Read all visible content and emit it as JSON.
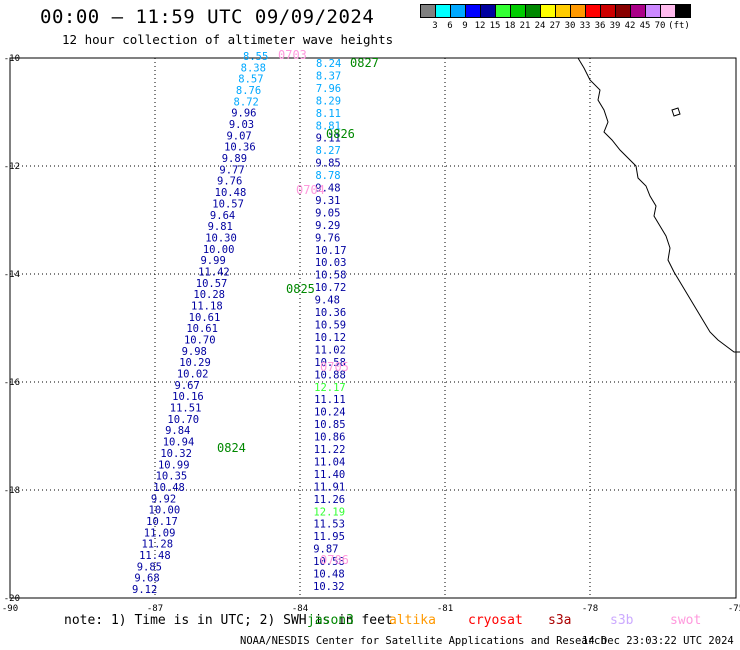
{
  "title": "00:00 — 11:59 UTC 09/09/2024",
  "subtitle": "12 hour collection of altimeter wave heights",
  "scale": {
    "colors": [
      "#808080",
      "#00ffff",
      "#00a8ff",
      "#0000ff",
      "#0000a0",
      "#33ff33",
      "#00cc00",
      "#008800",
      "#ffff00",
      "#ffcc00",
      "#ff9900",
      "#ff0000",
      "#cc0000",
      "#880000",
      "#aa0088",
      "#cc88ff",
      "#ffbbee",
      "#000000"
    ],
    "labels": [
      "3",
      "6",
      "9",
      "12",
      "15",
      "18",
      "21",
      "24",
      "27",
      "30",
      "33",
      "36",
      "39",
      "42",
      "45",
      "70",
      "(ft)"
    ]
  },
  "axes": {
    "lon_labels": [
      "-90",
      "-87",
      "-84",
      "-81",
      "-78",
      "-75"
    ],
    "lat_labels": [
      "-10",
      "-12",
      "-14",
      "-16",
      "-18",
      "-20"
    ]
  },
  "tracks": {
    "left": [
      "8.55",
      "8.38",
      "8.57",
      "8.76",
      "8.72",
      "9.96",
      "9.03",
      "9.07",
      "10.36",
      "9.89",
      "9.77",
      "9.76",
      "10.48",
      "10.57",
      "9.64",
      "9.81",
      "10.30",
      "10.00",
      "9.99",
      "11.42",
      "10.57",
      "10.28",
      "11.18",
      "10.61",
      "10.61",
      "10.70",
      "9.98",
      "10.29",
      "10.02",
      "9.67",
      "10.16",
      "11.51",
      "10.70",
      "9.84",
      "10.94",
      "10.32",
      "10.99",
      "10.35",
      "10.48",
      "9.92",
      "10.00",
      "10.17",
      "11.09",
      "11.28",
      "11.48",
      "9.85",
      "9.68",
      "9.12"
    ],
    "right": [
      "8.24",
      "8.37",
      "7.96",
      "8.29",
      "8.11",
      "8.81",
      "9.11",
      "8.27",
      "9.85",
      "8.78",
      "9.48",
      "9.31",
      "9.05",
      "9.29",
      "9.76",
      "10.17",
      "10.03",
      "10.58",
      "10.72",
      "9.48",
      "10.36",
      "10.59",
      "10.12",
      "11.02",
      "10.58",
      "10.88",
      "12.17",
      "11.11",
      "10.24",
      "10.85",
      "10.86",
      "11.22",
      "11.04",
      "11.40",
      "11.91",
      "11.26",
      "12.19",
      "11.53",
      "11.95",
      "9.87",
      "10.58",
      "10.48",
      "10.32"
    ],
    "ids": [
      "0703",
      "0827",
      "0826",
      "0704",
      "0825",
      "0705",
      "0824",
      "0706"
    ]
  },
  "legend": {
    "note": "note:  1) Time is in UTC; 2) SWH is in feet",
    "satellites": [
      "jason3",
      "altika",
      "cryosat",
      "s3a",
      "s3b",
      "swot"
    ],
    "satellite_colors": [
      "#008800",
      "#ff9900",
      "#ff0000",
      "#aa0000",
      "#ccaaff",
      "#ff99dd"
    ]
  },
  "credit": "NOAA/NESDIS Center for Satellite Applications and Research",
  "timestamp": "14 Dec 23:03:22 UTC 2024"
}
